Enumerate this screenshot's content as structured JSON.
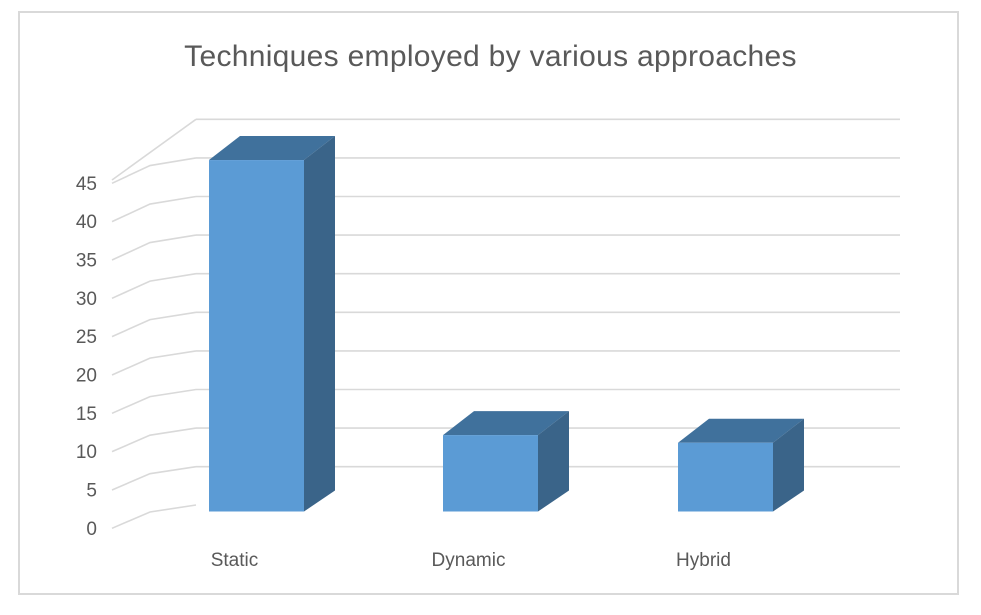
{
  "window": {
    "background_color": "#FFFFFF",
    "frame_border_color": "#D9D9D9"
  },
  "chart_title": "Techniques employed by various approaches",
  "chart_data": {
    "type": "bar",
    "variant": "3d-column",
    "title": "Techniques employed by various approaches",
    "categories": [
      "Static",
      "Dynamic",
      "Hybrid"
    ],
    "values": [
      46,
      10,
      9
    ],
    "xlabel": "",
    "ylabel": "",
    "ylim": [
      0,
      50
    ],
    "y_tick_step": 5,
    "y_tick_labels": [
      "0",
      "5",
      "10",
      "15",
      "20",
      "25",
      "30",
      "35",
      "40",
      "45"
    ],
    "gridlines_visible": true,
    "gridline_count": 10,
    "legend": "none",
    "colors": {
      "bar_front": "#5B9BD5",
      "bar_top": "#40719C",
      "bar_side": "#3A6489",
      "gridline": "#D9D9D9",
      "text": "#595959",
      "title_text": "#595959"
    }
  }
}
